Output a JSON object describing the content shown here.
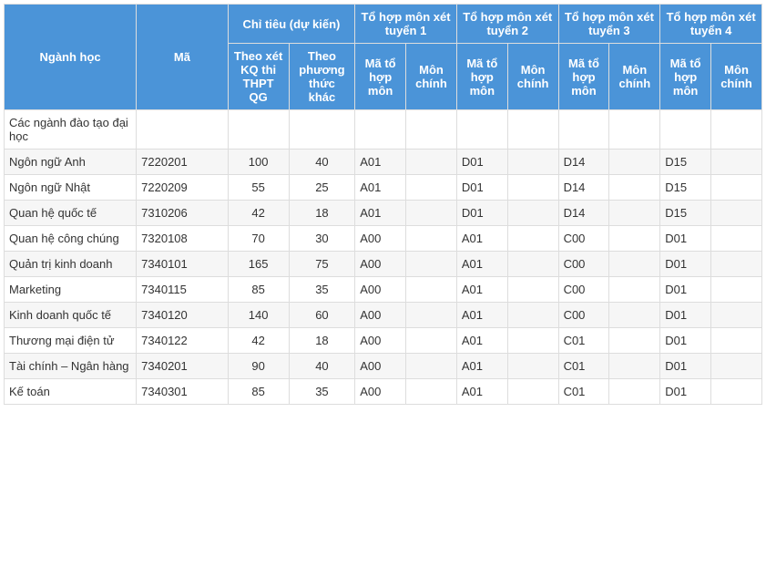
{
  "header": {
    "nganh_hoc": "Ngành học",
    "ma": "Mã",
    "chi_tieu_group": "Chỉ tiêu (dự kiến)",
    "chi_tieu_thpt": "Theo xét KQ thi THPT QG",
    "chi_tieu_khac": "Theo phương thức khác",
    "tohop1": "Tổ hợp môn xét tuyển 1",
    "tohop2": "Tổ hợp môn xét tuyển 2",
    "tohop3": "Tổ hợp môn xét tuyển 3",
    "tohop4": "Tổ hợp môn xét tuyển 4",
    "ma_to_hop": "Mã tổ hợp môn",
    "mon_chinh": "Môn chính"
  },
  "rows": [
    {
      "nganh": "Các ngành đào tạo đại học",
      "ma": "",
      "ct1": "",
      "ct2": "",
      "t1m": "",
      "t1c": "",
      "t2m": "",
      "t2c": "",
      "t3m": "",
      "t3c": "",
      "t4m": "",
      "t4c": ""
    },
    {
      "nganh": "Ngôn ngữ Anh",
      "ma": "7220201",
      "ct1": "100",
      "ct2": "40",
      "t1m": "A01",
      "t1c": "",
      "t2m": "D01",
      "t2c": "",
      "t3m": "D14",
      "t3c": "",
      "t4m": "D15",
      "t4c": ""
    },
    {
      "nganh": "Ngôn ngữ Nhật",
      "ma": "7220209",
      "ct1": "55",
      "ct2": "25",
      "t1m": "A01",
      "t1c": "",
      "t2m": "D01",
      "t2c": "",
      "t3m": "D14",
      "t3c": "",
      "t4m": "D15",
      "t4c": ""
    },
    {
      "nganh": "Quan hệ quốc tế",
      "ma": "7310206",
      "ct1": "42",
      "ct2": "18",
      "t1m": "A01",
      "t1c": "",
      "t2m": "D01",
      "t2c": "",
      "t3m": "D14",
      "t3c": "",
      "t4m": "D15",
      "t4c": ""
    },
    {
      "nganh": "Quan hệ công chúng",
      "ma": "7320108",
      "ct1": "70",
      "ct2": "30",
      "t1m": "A00",
      "t1c": "",
      "t2m": "A01",
      "t2c": "",
      "t3m": "C00",
      "t3c": "",
      "t4m": "D01",
      "t4c": ""
    },
    {
      "nganh": "Quản trị kinh doanh",
      "ma": "7340101",
      "ct1": "165",
      "ct2": "75",
      "t1m": "A00",
      "t1c": "",
      "t2m": "A01",
      "t2c": "",
      "t3m": "C00",
      "t3c": "",
      "t4m": "D01",
      "t4c": ""
    },
    {
      "nganh": "Marketing",
      "ma": "7340115",
      "ct1": "85",
      "ct2": "35",
      "t1m": "A00",
      "t1c": "",
      "t2m": "A01",
      "t2c": "",
      "t3m": "C00",
      "t3c": "",
      "t4m": "D01",
      "t4c": ""
    },
    {
      "nganh": "Kinh doanh quốc tế",
      "ma": "7340120",
      "ct1": "140",
      "ct2": "60",
      "t1m": "A00",
      "t1c": "",
      "t2m": "A01",
      "t2c": "",
      "t3m": "C00",
      "t3c": "",
      "t4m": "D01",
      "t4c": ""
    },
    {
      "nganh": "Thương mại điện tử",
      "ma": "7340122",
      "ct1": "42",
      "ct2": "18",
      "t1m": "A00",
      "t1c": "",
      "t2m": "A01",
      "t2c": "",
      "t3m": "C01",
      "t3c": "",
      "t4m": "D01",
      "t4c": ""
    },
    {
      "nganh": "Tài chính – Ngân hàng",
      "ma": "7340201",
      "ct1": "90",
      "ct2": "40",
      "t1m": "A00",
      "t1c": "",
      "t2m": "A01",
      "t2c": "",
      "t3m": "C01",
      "t3c": "",
      "t4m": "D01",
      "t4c": ""
    },
    {
      "nganh": "Kế toán",
      "ma": "7340301",
      "ct1": "85",
      "ct2": "35",
      "t1m": "A00",
      "t1c": "",
      "t2m": "A01",
      "t2c": "",
      "t3m": "C01",
      "t3c": "",
      "t4m": "D01",
      "t4c": ""
    }
  ],
  "style": {
    "header_bg": "#4b94d8",
    "header_fg": "#ffffff",
    "border": "#dddddd",
    "row_odd_bg": "#ffffff",
    "row_even_bg": "#f6f6f6",
    "font_size": 13
  }
}
